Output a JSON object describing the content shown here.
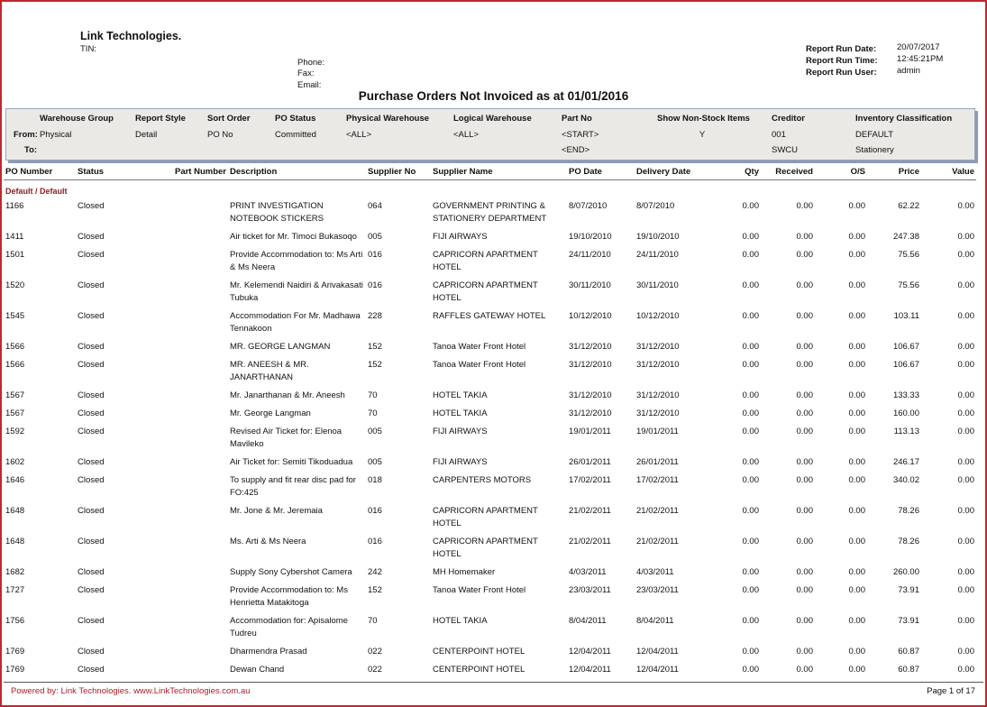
{
  "header": {
    "company": "Link Technologies.",
    "tin_label": "TIN:",
    "phone_label": "Phone:",
    "fax_label": "Fax:",
    "email_label": "Email:"
  },
  "run_info": [
    [
      "Report Run Date:",
      "20/07/2017"
    ],
    [
      "Report Run Time:",
      "12:45:21PM"
    ],
    [
      "Report Run User:",
      "admin"
    ]
  ],
  "title": "Purchase Orders Not Invoiced as at 01/01/2016",
  "filters": {
    "from_label": "From:",
    "to_label": "To:",
    "columns": [
      {
        "label": "Warehouse Group",
        "from": "Physical"
      },
      {
        "label": "Report Style",
        "from": "Detail"
      },
      {
        "label": "Sort Order",
        "from": "PO No"
      },
      {
        "label": "PO Status",
        "from": "Committed"
      },
      {
        "label": "Physical Warehouse",
        "from": "<ALL>"
      },
      {
        "label": "Logical Warehouse",
        "from": "<ALL>"
      },
      {
        "label": "Part No",
        "from": "<START>",
        "to": "<END>"
      },
      {
        "label": "Show Non-Stock Items",
        "from": "Y"
      },
      {
        "label": "Creditor",
        "from": "001",
        "to": "SWCU"
      },
      {
        "label": "Inventory Classification",
        "from": "DEFAULT",
        "to": "Stationery"
      }
    ]
  },
  "table": {
    "columns": [
      "PO Number",
      "Status",
      "Part Number",
      "Description",
      "Supplier No",
      "Supplier Name",
      "PO Date",
      "Delivery Date",
      "Qty",
      "Received",
      "O/S",
      "Price",
      "Value"
    ],
    "group": "Default / Default",
    "rows": [
      [
        "1166",
        "Closed",
        null,
        "PRINT INVESTIGATION NOTEBOOK STICKERS",
        "064",
        "GOVERNMENT PRINTING & STATIONERY DEPARTMENT",
        "8/07/2010",
        "8/07/2010",
        "0.00",
        "0.00",
        "0.00",
        "62.22",
        "0.00"
      ],
      [
        "1411",
        "Closed",
        null,
        "Air ticket for Mr. Timoci Bukasoqo",
        "005",
        "FIJI AIRWAYS",
        "19/10/2010",
        "19/10/2010",
        "0.00",
        "0.00",
        "0.00",
        "247.38",
        "0.00"
      ],
      [
        "1501",
        "Closed",
        null,
        "Provide Accommodation to: Ms Arti & Ms Neera",
        "016",
        "CAPRICORN APARTMENT HOTEL",
        "24/11/2010",
        "24/11/2010",
        "0.00",
        "0.00",
        "0.00",
        "75.56",
        "0.00"
      ],
      [
        "1520",
        "Closed",
        null,
        "Mr. Kelemendi Naidiri & Arivakasati Tubuka",
        "016",
        "CAPRICORN APARTMENT HOTEL",
        "30/11/2010",
        "30/11/2010",
        "0.00",
        "0.00",
        "0.00",
        "75.56",
        "0.00"
      ],
      [
        "1545",
        "Closed",
        null,
        "Accommodation For Mr. Madhawa Tennakoon",
        "228",
        "RAFFLES GATEWAY HOTEL",
        "10/12/2010",
        "10/12/2010",
        "0.00",
        "0.00",
        "0.00",
        "103.11",
        "0.00"
      ],
      [
        "1566",
        "Closed",
        null,
        "MR. GEORGE LANGMAN",
        "152",
        "Tanoa Water Front Hotel",
        "31/12/2010",
        "31/12/2010",
        "0.00",
        "0.00",
        "0.00",
        "106.67",
        "0.00"
      ],
      [
        "1566",
        "Closed",
        null,
        "MR. ANEESH & MR. JANARTHANAN",
        "152",
        "Tanoa Water Front Hotel",
        "31/12/2010",
        "31/12/2010",
        "0.00",
        "0.00",
        "0.00",
        "106.67",
        "0.00"
      ],
      [
        "1567",
        "Closed",
        null,
        "Mr. Janarthanan & Mr. Aneesh",
        "70",
        "HOTEL TAKIA",
        "31/12/2010",
        "31/12/2010",
        "0.00",
        "0.00",
        "0.00",
        "133.33",
        "0.00"
      ],
      [
        "1567",
        "Closed",
        null,
        "Mr. George Langman",
        "70",
        "HOTEL TAKIA",
        "31/12/2010",
        "31/12/2010",
        "0.00",
        "0.00",
        "0.00",
        "160.00",
        "0.00"
      ],
      [
        "1592",
        "Closed",
        null,
        "Revised Air Ticket for: Elenoa Mavileko",
        "005",
        "FIJI AIRWAYS",
        "19/01/2011",
        "19/01/2011",
        "0.00",
        "0.00",
        "0.00",
        "113.13",
        "0.00"
      ],
      [
        "1602",
        "Closed",
        null,
        "Air Ticket for: Semiti Tikoduadua",
        "005",
        "FIJI AIRWAYS",
        "26/01/2011",
        "26/01/2011",
        "0.00",
        "0.00",
        "0.00",
        "246.17",
        "0.00"
      ],
      [
        "1646",
        "Closed",
        null,
        "To supply and fit rear disc pad for FO:425",
        "018",
        "CARPENTERS MOTORS",
        "17/02/2011",
        "17/02/2011",
        "0.00",
        "0.00",
        "0.00",
        "340.02",
        "0.00"
      ],
      [
        "1648",
        "Closed",
        null,
        "Mr. Jone & Mr. Jeremaia",
        "016",
        "CAPRICORN APARTMENT HOTEL",
        "21/02/2011",
        "21/02/2011",
        "0.00",
        "0.00",
        "0.00",
        "78.26",
        "0.00"
      ],
      [
        "1648",
        "Closed",
        null,
        "Ms. Arti & Ms Neera",
        "016",
        "CAPRICORN APARTMENT HOTEL",
        "21/02/2011",
        "21/02/2011",
        "0.00",
        "0.00",
        "0.00",
        "78.26",
        "0.00"
      ],
      [
        "1682",
        "Closed",
        null,
        "Supply Sony Cybershot Camera",
        "242",
        "MH Homemaker",
        "4/03/2011",
        "4/03/2011",
        "0.00",
        "0.00",
        "0.00",
        "260.00",
        "0.00"
      ],
      [
        "1727",
        "Closed",
        null,
        "Provide Accommodation to: Ms Henrietta Matakitoga",
        "152",
        "Tanoa Water Front Hotel",
        "23/03/2011",
        "23/03/2011",
        "0.00",
        "0.00",
        "0.00",
        "73.91",
        "0.00"
      ],
      [
        "1756",
        "Closed",
        null,
        "Accommodation for: Apisalome Tudreu",
        "70",
        "HOTEL TAKIA",
        "8/04/2011",
        "8/04/2011",
        "0.00",
        "0.00",
        "0.00",
        "73.91",
        "0.00"
      ],
      [
        "1769",
        "Closed",
        null,
        "Dharmendra Prasad",
        "022",
        "CENTERPOINT HOTEL",
        "12/04/2011",
        "12/04/2011",
        "0.00",
        "0.00",
        "0.00",
        "60.87",
        "0.00"
      ],
      [
        "1769",
        "Closed",
        null,
        "Dewan Chand",
        "022",
        "CENTERPOINT HOTEL",
        "12/04/2011",
        "12/04/2011",
        "0.00",
        "0.00",
        "0.00",
        "60.87",
        "0.00"
      ]
    ]
  },
  "footer": {
    "powered_by": "Powered by: Link Technologies. www.LinkTechnologies.com.au",
    "page": "Page 1 of 17"
  }
}
